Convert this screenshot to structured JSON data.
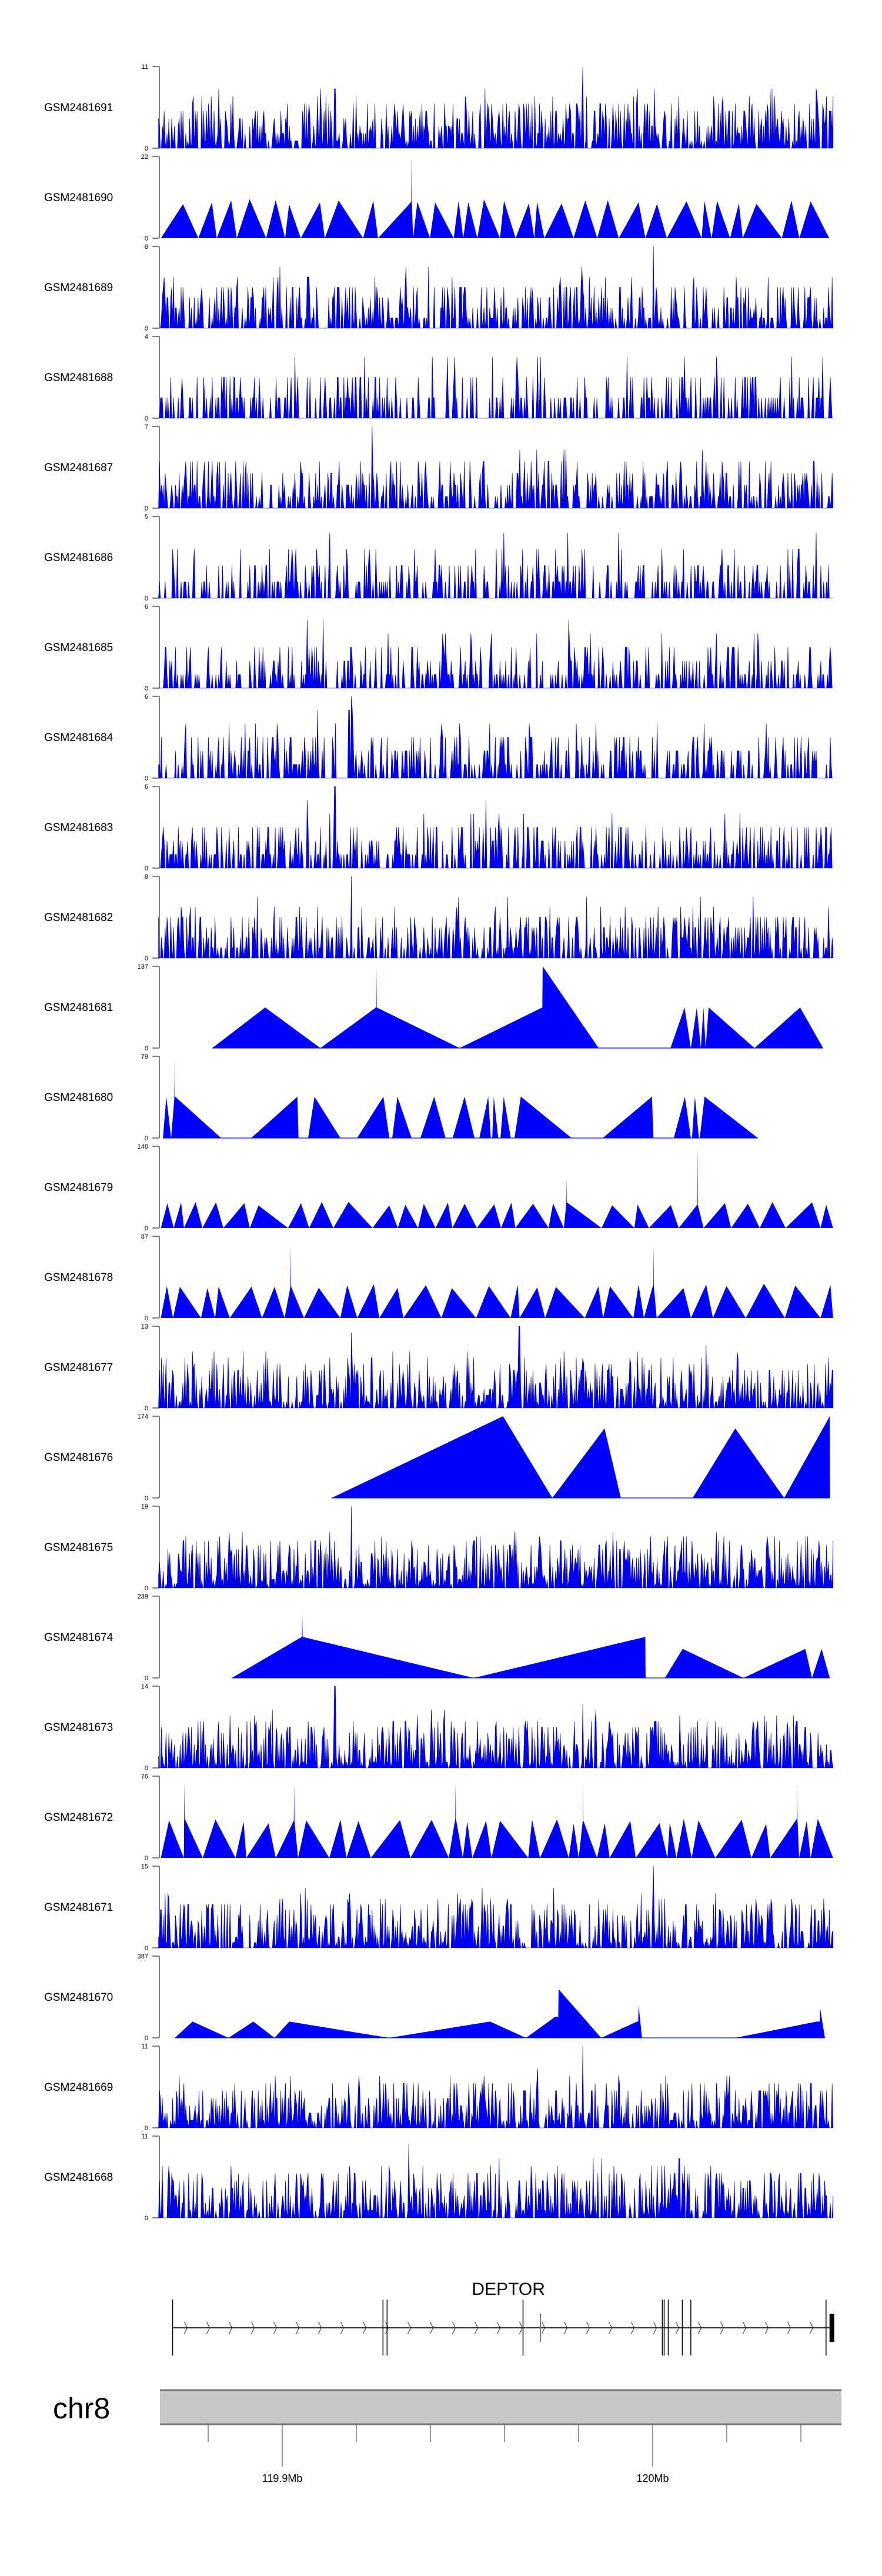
{
  "chart_data": {
    "type": "area",
    "title": "",
    "xlabel": "",
    "ylabel": "",
    "chromosome": "chr8",
    "xlim_mb": [
      119.8666,
      120.0487
    ],
    "x_ticks": [
      {
        "mb": 119.88
      },
      {
        "mb": 119.9,
        "label": "119.9Mb"
      },
      {
        "mb": 119.92
      },
      {
        "mb": 119.94
      },
      {
        "mb": 119.96
      },
      {
        "mb": 119.98
      },
      {
        "mb": 120.0,
        "label": "120Mb"
      },
      {
        "mb": 120.02
      },
      {
        "mb": 120.04
      }
    ],
    "gene": {
      "name": "DEPTOR",
      "start_mb": 119.8704,
      "end_mb": 120.0479,
      "strand": "+",
      "exon_mb": [
        119.8704,
        119.9272,
        119.9283,
        119.965,
        120.0026,
        120.0031,
        120.0042,
        120.008,
        120.0103,
        120.0468
      ],
      "minor_mark_mb": 119.9697
    },
    "colors": {
      "fill": "#0000FF",
      "stroke": "#00008B",
      "axis": "#808080",
      "ideogram": "#C8C8C8"
    },
    "tracks": [
      {
        "label": "GSM2481691",
        "ymax": 11,
        "style": "dense",
        "peaks": [
          [
            119.9142,
            8
          ],
          [
            119.9812,
            11
          ]
        ]
      },
      {
        "label": "GSM2481690",
        "ymax": 22,
        "style": "triangles",
        "level": 10,
        "peaks": [
          [
            119.9349,
            22
          ]
        ]
      },
      {
        "label": "GSM2481689",
        "ymax": 8,
        "style": "dense",
        "peaks": [
          [
            120.0002,
            8
          ]
        ]
      },
      {
        "label": "GSM2481688",
        "ymax": 4,
        "style": "dense",
        "peaks": []
      },
      {
        "label": "GSM2481687",
        "ymax": 7,
        "style": "dense",
        "peaks": [
          [
            119.9243,
            7
          ]
        ]
      },
      {
        "label": "GSM2481686",
        "ymax": 5,
        "style": "dense",
        "peaks": []
      },
      {
        "label": "GSM2481685",
        "ymax": 6,
        "style": "dense",
        "peaks": []
      },
      {
        "label": "GSM2481684",
        "ymax": 6,
        "style": "dense",
        "peaks": [
          [
            119.918,
            5
          ],
          [
            119.9186,
            6
          ],
          [
            119.919,
            5
          ]
        ]
      },
      {
        "label": "GSM2481683",
        "ymax": 6,
        "style": "dense",
        "peaks": [
          [
            119.9142,
            6
          ]
        ]
      },
      {
        "label": "GSM2481682",
        "ymax": 8,
        "style": "dense",
        "peaks": [
          [
            119.9186,
            8
          ]
        ]
      },
      {
        "label": "GSM2481681",
        "ymax": 137,
        "style": "points",
        "points": [
          [
            119.8811,
            0
          ],
          [
            119.8954,
            68
          ],
          [
            119.9103,
            0
          ],
          [
            119.9253,
            68
          ],
          [
            119.9254,
            137
          ],
          [
            119.9255,
            68
          ],
          [
            119.9479,
            0
          ],
          [
            119.9702,
            68
          ],
          [
            119.9703,
            137
          ],
          [
            119.9854,
            0
          ],
          [
            120.0048,
            0
          ],
          [
            120.0086,
            68
          ],
          [
            120.0103,
            0
          ],
          [
            120.0119,
            68
          ],
          [
            120.013,
            0
          ],
          [
            120.0137,
            68
          ],
          [
            120.0143,
            0
          ],
          [
            120.0151,
            68
          ],
          [
            120.0275,
            0
          ],
          [
            120.0398,
            68
          ],
          [
            120.046,
            0
          ]
        ]
      },
      {
        "label": "GSM2481680",
        "ymax": 79,
        "style": "points",
        "points": [
          [
            119.8678,
            0
          ],
          [
            119.8687,
            40
          ],
          [
            119.87,
            0
          ],
          [
            119.8709,
            40
          ],
          [
            119.871,
            79
          ],
          [
            119.8711,
            40
          ],
          [
            119.8835,
            0
          ],
          [
            119.8916,
            0
          ],
          [
            119.9041,
            40
          ],
          [
            119.9044,
            0
          ],
          [
            119.907,
            0
          ],
          [
            119.9087,
            40
          ],
          [
            119.9157,
            0
          ],
          [
            119.9202,
            0
          ],
          [
            119.9273,
            40
          ],
          [
            119.9289,
            0
          ],
          [
            119.9297,
            0
          ],
          [
            119.9311,
            40
          ],
          [
            119.9349,
            0
          ],
          [
            119.9373,
            0
          ],
          [
            119.941,
            40
          ],
          [
            119.9441,
            0
          ],
          [
            119.946,
            0
          ],
          [
            119.9492,
            40
          ],
          [
            119.9519,
            0
          ],
          [
            119.9532,
            0
          ],
          [
            119.9556,
            40
          ],
          [
            119.9563,
            0
          ],
          [
            119.9567,
            0
          ],
          [
            119.9571,
            40
          ],
          [
            119.9583,
            0
          ],
          [
            119.9589,
            0
          ],
          [
            119.9598,
            40
          ],
          [
            119.9617,
            0
          ],
          [
            119.9627,
            0
          ],
          [
            119.9644,
            40
          ],
          [
            119.9781,
            0
          ],
          [
            119.9865,
            0
          ],
          [
            119.9998,
            40
          ],
          [
            120.0002,
            0
          ],
          [
            120.0057,
            0
          ],
          [
            120.0087,
            40
          ],
          [
            120.0103,
            0
          ],
          [
            120.0106,
            0
          ],
          [
            120.0114,
            40
          ],
          [
            120.0125,
            0
          ],
          [
            120.0127,
            0
          ],
          [
            120.014,
            40
          ],
          [
            120.0284,
            0
          ]
        ]
      },
      {
        "label": "GSM2481679",
        "ymax": 148,
        "style": "triangles",
        "level": 45,
        "peaks": [
          [
            119.9768,
            90
          ],
          [
            120.0121,
            148
          ]
        ],
        "gap_mb": [
          119.999,
          120.006
        ]
      },
      {
        "label": "GSM2481678",
        "ymax": 87,
        "style": "triangles",
        "level": 35,
        "peaks": [
          [
            119.9023,
            78
          ],
          [
            120.0002,
            78
          ]
        ]
      },
      {
        "label": "GSM2481677",
        "ymax": 13,
        "style": "dense",
        "peaks": [
          [
            119.9186,
            12
          ],
          [
            119.964,
            13
          ]
        ]
      },
      {
        "label": "GSM2481676",
        "ymax": 174,
        "style": "points",
        "points": [
          [
            119.9133,
            0
          ],
          [
            119.9596,
            174
          ],
          [
            119.9729,
            0
          ],
          [
            119.987,
            148
          ],
          [
            119.9914,
            0
          ],
          [
            120.0108,
            0
          ],
          [
            120.0223,
            148
          ],
          [
            120.0355,
            0
          ],
          [
            120.0478,
            174
          ],
          [
            120.0479,
            0
          ]
        ]
      },
      {
        "label": "GSM2481675",
        "ymax": 19,
        "style": "dense",
        "peaks": [
          [
            119.9186,
            19
          ]
        ]
      },
      {
        "label": "GSM2481674",
        "ymax": 239,
        "style": "points",
        "points": [
          [
            119.8864,
            0
          ],
          [
            119.9053,
            120
          ],
          [
            119.9054,
            190
          ],
          [
            119.9055,
            120
          ],
          [
            119.9517,
            0
          ],
          [
            119.998,
            120
          ],
          [
            119.9981,
            0
          ],
          [
            120.0033,
            0
          ],
          [
            120.0081,
            85
          ],
          [
            120.0245,
            0
          ],
          [
            120.0412,
            85
          ],
          [
            120.043,
            0
          ],
          [
            120.0456,
            85
          ],
          [
            120.0478,
            0
          ]
        ]
      },
      {
        "label": "GSM2481673",
        "ymax": 14,
        "style": "dense",
        "peaks": [
          [
            119.9142,
            14
          ],
          [
            119.9812,
            11
          ]
        ]
      },
      {
        "label": "GSM2481672",
        "ymax": 76,
        "style": "triangles",
        "level": 35,
        "peaks": [
          [
            119.8736,
            70
          ],
          [
            119.9032,
            70
          ],
          [
            119.9468,
            70
          ],
          [
            119.9812,
            70
          ],
          [
            120.039,
            70
          ]
        ]
      },
      {
        "label": "GSM2481671",
        "ymax": 15,
        "style": "dense",
        "peaks": [
          [
            120.0002,
            15
          ]
        ]
      },
      {
        "label": "GSM2481670",
        "ymax": 387,
        "style": "points",
        "points": [
          [
            119.871,
            0
          ],
          [
            119.8758,
            77
          ],
          [
            119.8855,
            0
          ],
          [
            119.8922,
            77
          ],
          [
            119.8979,
            0
          ],
          [
            119.9019,
            77
          ],
          [
            119.9288,
            0
          ],
          [
            119.9561,
            77
          ],
          [
            119.9658,
            0
          ],
          [
            119.9737,
            100
          ],
          [
            119.9745,
            100
          ],
          [
            119.9746,
            230
          ],
          [
            119.9861,
            0
          ],
          [
            119.9958,
            77
          ],
          [
            119.9961,
            77
          ],
          [
            119.9962,
            155
          ],
          [
            119.9971,
            0
          ],
          [
            120.0223,
            0
          ],
          [
            120.0443,
            77
          ],
          [
            120.0451,
            77
          ],
          [
            120.0452,
            140
          ],
          [
            120.0465,
            0
          ]
        ]
      },
      {
        "label": "GSM2481669",
        "ymax": 11,
        "style": "dense",
        "peaks": [
          [
            119.9812,
            11
          ]
        ]
      },
      {
        "label": "GSM2481668",
        "ymax": 11,
        "style": "dense",
        "peaks": [
          [
            119.9341,
            10
          ]
        ]
      }
    ]
  }
}
